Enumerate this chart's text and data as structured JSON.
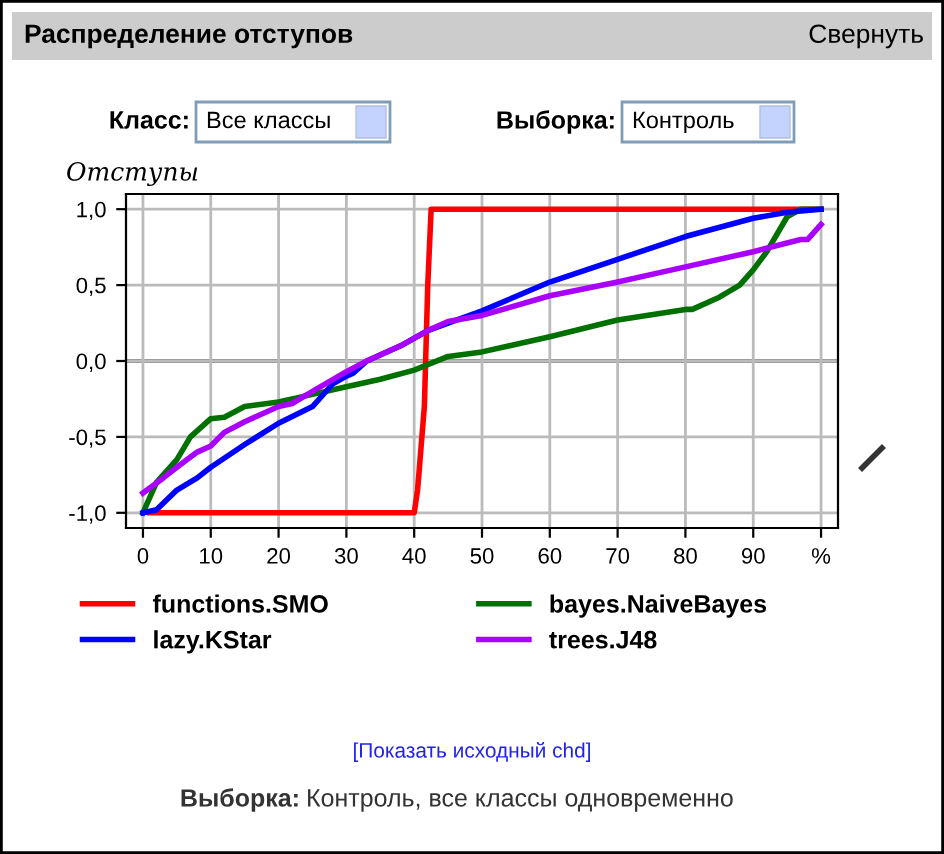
{
  "chart_data": {
    "type": "line",
    "title": "Распределение отступов",
    "ylabel": "Отступы",
    "annotations": [
      "Свернуть",
      "Класс:",
      "Все классы",
      "Выборка:",
      "Контроль",
      "[Показать исходный chd]",
      "Выборка:",
      "Контроль, все классы одновременно"
    ],
    "xlim": [
      -2.5,
      102.5
    ],
    "xticks": [
      0,
      10,
      20,
      30,
      40,
      50,
      60,
      70,
      80,
      90,
      {
        "value": 100,
        "label": "%"
      }
    ],
    "ylim": [
      -1.1,
      1.1
    ],
    "yticks": [
      {
        "value": -1,
        "label": "-1,0"
      },
      {
        "value": -0.5,
        "label": "-0,5"
      },
      {
        "value": 0,
        "label": "0,0"
      },
      {
        "value": 0.5,
        "label": "0,5"
      },
      {
        "value": 1,
        "label": "1,0"
      }
    ],
    "grid": true,
    "legend": "bottom",
    "line_style": "solid",
    "marker": "none",
    "ref_lines": [
      {
        "axis": "y",
        "value": 0,
        "color": "#000000"
      }
    ],
    "series": [
      {
        "name": "functions.SMO",
        "color": "#ff0000",
        "x": [
          1,
          40,
          40.5,
          41.5,
          42,
          42.5,
          100
        ],
        "values": [
          -1,
          -1,
          -0.85,
          -0.3,
          0.5,
          1,
          1
        ]
      },
      {
        "name": "bayes.NaiveBayes",
        "color": "#007000",
        "x": [
          0,
          2,
          5,
          7,
          10,
          12,
          15,
          20,
          25,
          30,
          35,
          40,
          45,
          50,
          60,
          70,
          80,
          81,
          85,
          88,
          90,
          92,
          95,
          97,
          100
        ],
        "values": [
          -1,
          -0.8,
          -0.65,
          -0.5,
          -0.38,
          -0.37,
          -0.3,
          -0.27,
          -0.22,
          -0.17,
          -0.12,
          -0.06,
          0.03,
          0.06,
          0.16,
          0.27,
          0.34,
          0.34,
          0.42,
          0.5,
          0.6,
          0.72,
          0.95,
          1,
          1
        ]
      },
      {
        "name": "lazy.KStar",
        "color": "#0000ff",
        "x": [
          0,
          2,
          5,
          8,
          10,
          15,
          20,
          25,
          28,
          30,
          31,
          33,
          38,
          42,
          45,
          50,
          60,
          70,
          80,
          90,
          95,
          100
        ],
        "values": [
          -1,
          -0.98,
          -0.85,
          -0.77,
          -0.7,
          -0.55,
          -0.41,
          -0.3,
          -0.15,
          -0.1,
          -0.08,
          0,
          0.1,
          0.2,
          0.25,
          0.33,
          0.52,
          0.67,
          0.82,
          0.94,
          0.98,
          1
        ]
      },
      {
        "name": "trees.J48",
        "color": "#aa00ff",
        "x": [
          0,
          3,
          5,
          8,
          10,
          12,
          15,
          20,
          22,
          25,
          30,
          33,
          38,
          42,
          45,
          50,
          60,
          70,
          80,
          90,
          97,
          98,
          100
        ],
        "values": [
          -0.87,
          -0.77,
          -0.7,
          -0.6,
          -0.56,
          -0.47,
          -0.4,
          -0.3,
          -0.28,
          -0.2,
          -0.07,
          0,
          0.1,
          0.2,
          0.26,
          0.3,
          0.43,
          0.52,
          0.62,
          0.72,
          0.8,
          0.8,
          0.9
        ]
      }
    ]
  }
}
